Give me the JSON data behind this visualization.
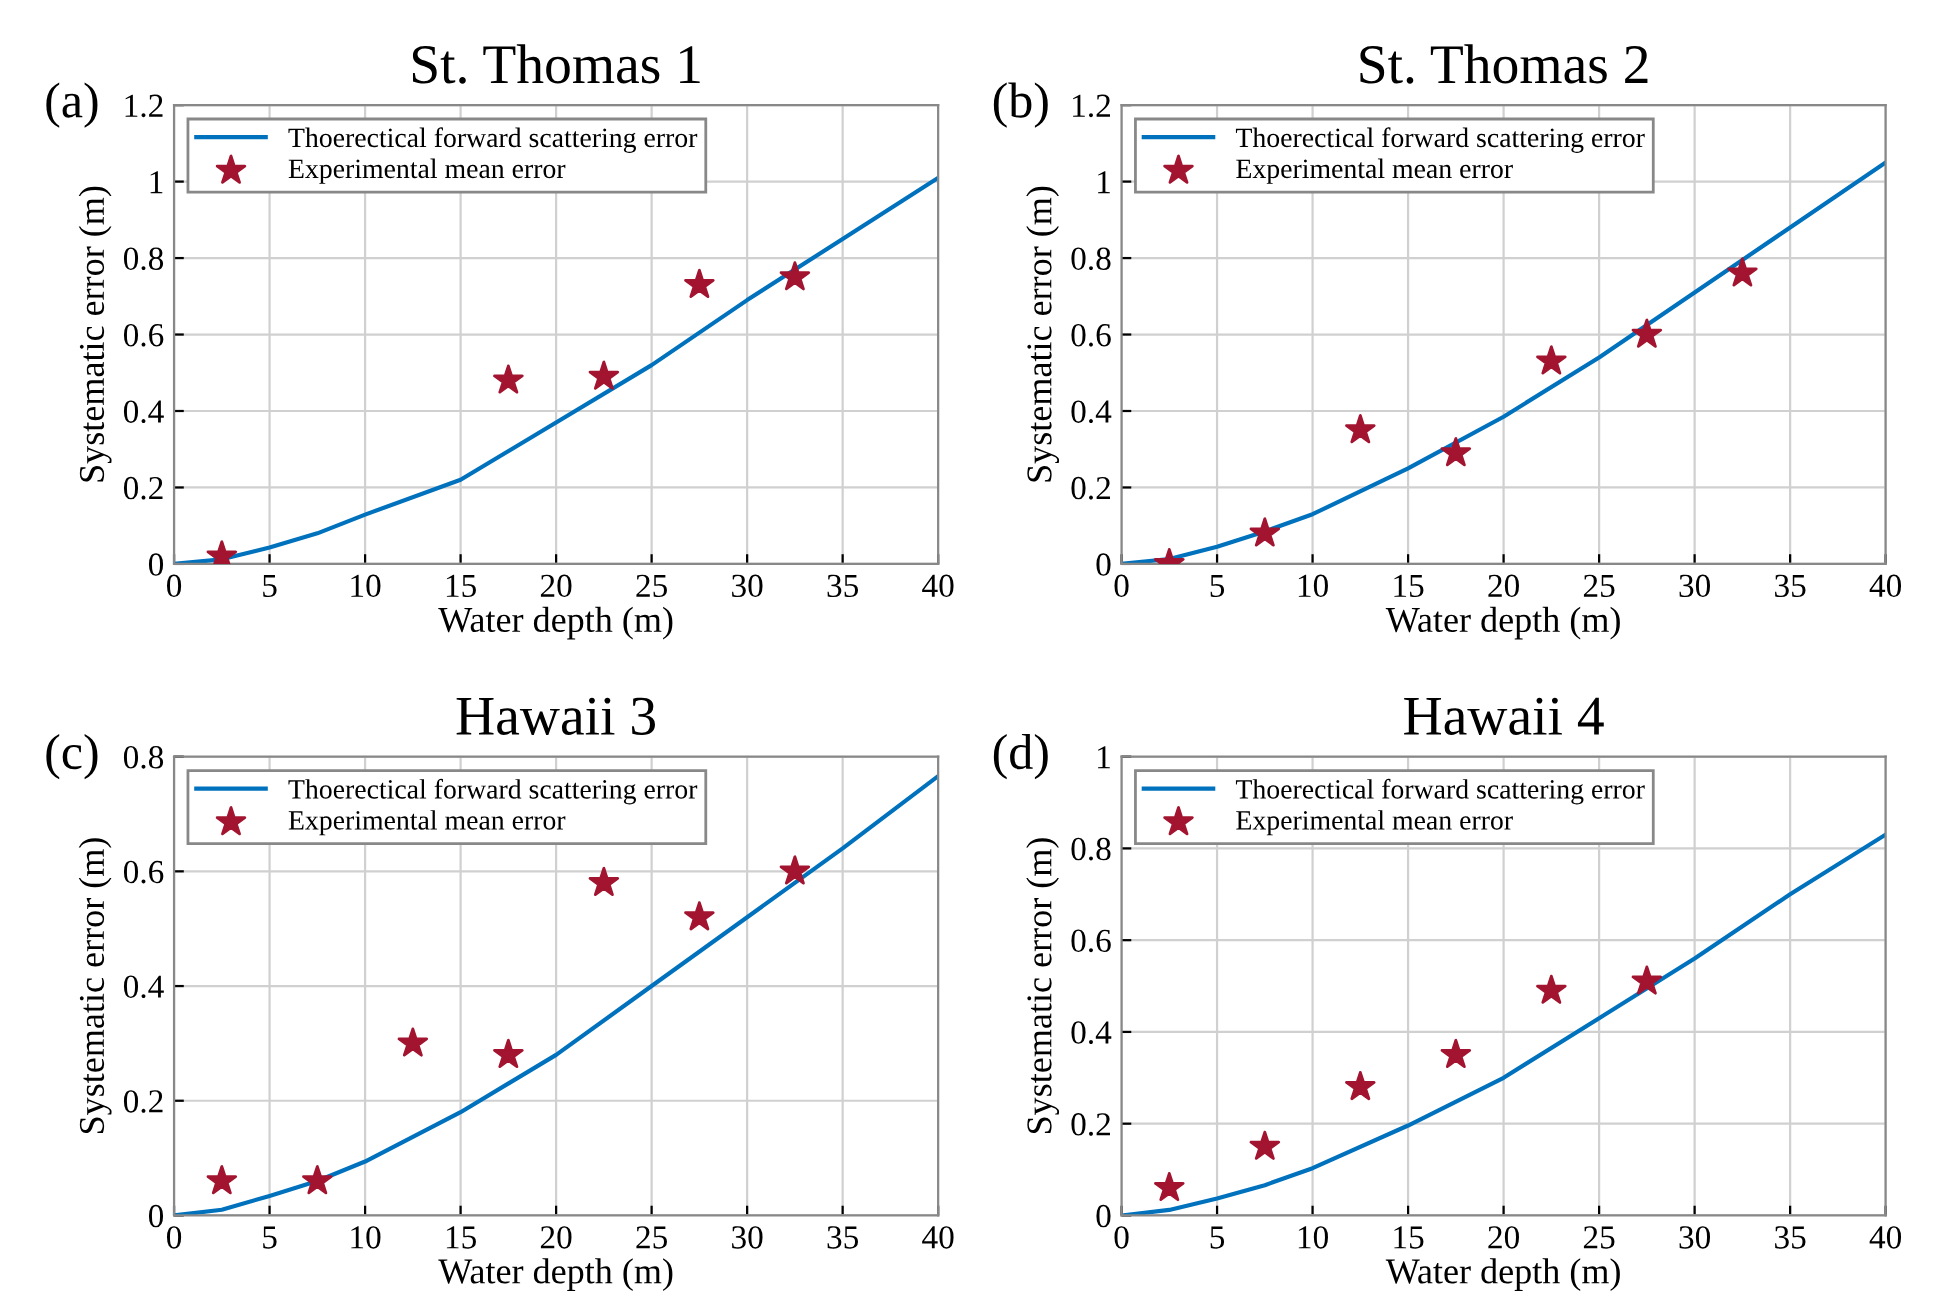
{
  "chart_data": [
    {
      "type": "line",
      "title": "St. Thomas 1",
      "xlabel": "Water depth (m)",
      "ylabel": "Systematic error (m)",
      "annotations": [
        "(a)"
      ],
      "xlim": [
        0,
        40
      ],
      "ylim": [
        0,
        1.2
      ],
      "xticks": [
        0,
        5,
        10,
        15,
        20,
        25,
        30,
        35,
        40
      ],
      "yticks": [
        0,
        0.2,
        0.4,
        0.6,
        0.8,
        1,
        1.2
      ],
      "grid": true,
      "legend": "top left",
      "series": [
        {
          "name": "Thoerectical forward scattering error",
          "color": "#0072bd",
          "marker": "none",
          "line_style": "solid",
          "x": [
            0,
            2.5,
            5,
            7.5,
            10,
            15,
            20,
            25,
            30,
            35,
            40
          ],
          "values": [
            0,
            0.012,
            0.043,
            0.08,
            0.129,
            0.22,
            0.37,
            0.52,
            0.69,
            0.85,
            1.01
          ]
        },
        {
          "name": "Experimental mean error",
          "type": "scatter",
          "color": "#a2142f",
          "marker": "star",
          "x": [
            2.5,
            17.5,
            22.5,
            27.5,
            32.5
          ],
          "values": [
            0.02,
            0.48,
            0.49,
            0.73,
            0.75
          ]
        }
      ]
    },
    {
      "type": "line",
      "title": "St. Thomas 2",
      "xlabel": "Water depth (m)",
      "ylabel": "Systematic error (m)",
      "annotations": [
        "(b)"
      ],
      "xlim": [
        0,
        40
      ],
      "ylim": [
        0,
        1.2
      ],
      "xticks": [
        0,
        5,
        10,
        15,
        20,
        25,
        30,
        35,
        40
      ],
      "yticks": [
        0,
        0.2,
        0.4,
        0.6,
        0.8,
        1,
        1.2
      ],
      "grid": true,
      "legend": "top left",
      "series": [
        {
          "name": "Thoerectical forward scattering error",
          "color": "#0072bd",
          "marker": "none",
          "line_style": "solid",
          "x": [
            0,
            2.5,
            5,
            7.5,
            10,
            15,
            20,
            25,
            30,
            35,
            40
          ],
          "values": [
            0,
            0.013,
            0.045,
            0.085,
            0.13,
            0.25,
            0.385,
            0.54,
            0.71,
            0.88,
            1.05
          ]
        },
        {
          "name": "Experimental mean error",
          "type": "scatter",
          "color": "#a2142f",
          "marker": "star",
          "x": [
            2.5,
            7.5,
            12.5,
            17.5,
            22.5,
            27.5,
            32.5
          ],
          "values": [
            0.0,
            0.08,
            0.35,
            0.29,
            0.53,
            0.6,
            0.76
          ]
        }
      ]
    },
    {
      "type": "line",
      "title": "Hawaii 3",
      "xlabel": "Water depth (m)",
      "ylabel": "Systematic error (m)",
      "annotations": [
        "(c)"
      ],
      "xlim": [
        0,
        40
      ],
      "ylim": [
        0,
        0.8
      ],
      "xticks": [
        0,
        5,
        10,
        15,
        20,
        25,
        30,
        35,
        40
      ],
      "yticks": [
        0,
        0.2,
        0.4,
        0.6,
        0.8
      ],
      "grid": true,
      "legend": "top left",
      "series": [
        {
          "name": "Thoerectical forward scattering error",
          "color": "#0072bd",
          "marker": "none",
          "line_style": "solid",
          "x": [
            0,
            2.5,
            5,
            7.5,
            10,
            15,
            20,
            25,
            30,
            35,
            40
          ],
          "values": [
            0,
            0.01,
            0.034,
            0.06,
            0.094,
            0.18,
            0.28,
            0.4,
            0.52,
            0.64,
            0.766
          ]
        },
        {
          "name": "Experimental mean error",
          "type": "scatter",
          "color": "#a2142f",
          "marker": "star",
          "x": [
            2.5,
            7.5,
            12.5,
            17.5,
            22.5,
            27.5,
            32.5
          ],
          "values": [
            0.06,
            0.06,
            0.3,
            0.28,
            0.58,
            0.52,
            0.6
          ]
        }
      ]
    },
    {
      "type": "line",
      "title": "Hawaii 4",
      "xlabel": "Water depth (m)",
      "ylabel": "Systematic error (m)",
      "annotations": [
        "(d)"
      ],
      "xlim": [
        0,
        40
      ],
      "ylim": [
        0,
        1
      ],
      "xticks": [
        0,
        5,
        10,
        15,
        20,
        25,
        30,
        35,
        40
      ],
      "yticks": [
        0,
        0.2,
        0.4,
        0.6,
        0.8,
        1
      ],
      "grid": true,
      "legend": "top left",
      "series": [
        {
          "name": "Thoerectical forward scattering error",
          "color": "#0072bd",
          "marker": "none",
          "line_style": "solid",
          "x": [
            0,
            2.5,
            5,
            7.5,
            10,
            15,
            20,
            25,
            30,
            35,
            40
          ],
          "values": [
            0,
            0.012,
            0.037,
            0.066,
            0.103,
            0.196,
            0.3,
            0.43,
            0.56,
            0.7,
            0.83
          ]
        },
        {
          "name": "Experimental mean error",
          "type": "scatter",
          "color": "#a2142f",
          "marker": "star",
          "x": [
            2.5,
            7.5,
            12.5,
            17.5,
            22.5,
            27.5
          ],
          "values": [
            0.06,
            0.15,
            0.28,
            0.35,
            0.49,
            0.51
          ]
        }
      ]
    }
  ]
}
